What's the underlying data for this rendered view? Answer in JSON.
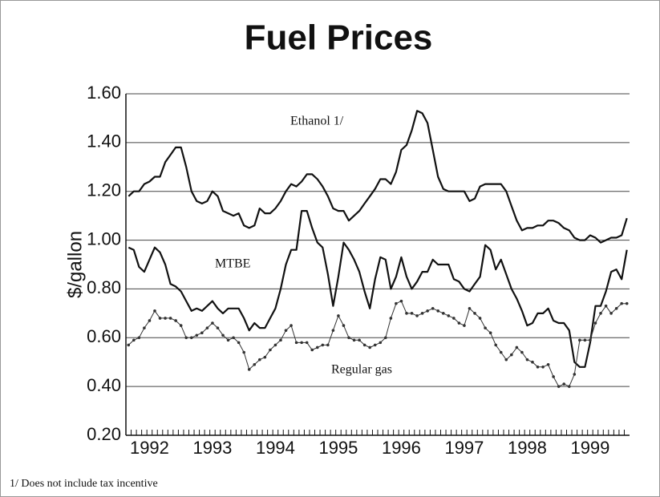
{
  "chart_data": {
    "type": "line",
    "title": "Fuel Prices",
    "y_label": "$/gallon",
    "footnote": "1/ Does not include tax incentive",
    "categories": [
      null,
      null,
      null,
      null,
      "1992",
      null,
      null,
      null,
      null,
      null,
      null,
      null,
      null,
      null,
      null,
      null,
      "1993",
      null,
      null,
      null,
      null,
      null,
      null,
      null,
      null,
      null,
      null,
      null,
      "1994",
      null,
      null,
      null,
      null,
      null,
      null,
      null,
      null,
      null,
      null,
      null,
      "1995",
      null,
      null,
      null,
      null,
      null,
      null,
      null,
      null,
      null,
      null,
      null,
      "1996",
      null,
      null,
      null,
      null,
      null,
      null,
      null,
      null,
      null,
      null,
      null,
      "1997",
      null,
      null,
      null,
      null,
      null,
      null,
      null,
      null,
      null,
      null,
      null,
      "1998",
      null,
      null,
      null,
      null,
      null,
      null,
      null,
      null,
      null,
      null,
      null,
      "1999",
      null,
      null,
      null,
      null,
      null,
      null,
      null
    ],
    "ylim": [
      0.2,
      1.6
    ],
    "yticks": [
      {
        "value": 0.2,
        "label": "0.20"
      },
      {
        "value": 0.4,
        "label": "0.40"
      },
      {
        "value": 0.6,
        "label": "0.60"
      },
      {
        "value": 0.8,
        "label": "0.80"
      },
      {
        "value": 1.0,
        "label": "1.00"
      },
      {
        "value": 1.2,
        "label": "1.20"
      },
      {
        "value": 1.4,
        "label": "1.40"
      },
      {
        "value": 1.6,
        "label": "1.60"
      }
    ],
    "grid": true,
    "series": [
      {
        "name": "Ethanol 1/",
        "color": "#111111",
        "markers": false,
        "values": [
          1.18,
          1.2,
          1.2,
          1.23,
          1.24,
          1.26,
          1.26,
          1.32,
          1.35,
          1.38,
          1.38,
          1.3,
          1.2,
          1.16,
          1.15,
          1.16,
          1.2,
          1.18,
          1.12,
          1.11,
          1.1,
          1.11,
          1.06,
          1.05,
          1.06,
          1.13,
          1.11,
          1.11,
          1.13,
          1.16,
          1.2,
          1.23,
          1.22,
          1.24,
          1.27,
          1.27,
          1.25,
          1.22,
          1.18,
          1.13,
          1.12,
          1.12,
          1.08,
          1.1,
          1.12,
          1.15,
          1.18,
          1.21,
          1.25,
          1.25,
          1.23,
          1.28,
          1.37,
          1.39,
          1.45,
          1.53,
          1.52,
          1.48,
          1.37,
          1.26,
          1.21,
          1.2,
          1.2,
          1.2,
          1.2,
          1.16,
          1.17,
          1.22,
          1.23,
          1.23,
          1.23,
          1.23,
          1.2,
          1.14,
          1.08,
          1.04,
          1.05,
          1.05,
          1.06,
          1.06,
          1.08,
          1.08,
          1.07,
          1.05,
          1.04,
          1.01,
          1.0,
          1.0,
          1.02,
          1.01,
          0.99,
          1.0,
          1.01,
          1.01,
          1.02,
          1.09
        ]
      },
      {
        "name": "MTBE",
        "color": "#111111",
        "markers": false,
        "values": [
          0.97,
          0.96,
          0.89,
          0.87,
          0.92,
          0.97,
          0.95,
          0.9,
          0.82,
          0.81,
          0.79,
          0.75,
          0.71,
          0.72,
          0.71,
          0.73,
          0.75,
          0.72,
          0.7,
          0.72,
          0.72,
          0.72,
          0.68,
          0.63,
          0.66,
          0.64,
          0.64,
          0.68,
          0.72,
          0.8,
          0.9,
          0.96,
          0.96,
          1.12,
          1.12,
          1.05,
          0.99,
          0.97,
          0.86,
          0.73,
          0.85,
          0.99,
          0.96,
          0.92,
          0.87,
          0.79,
          0.72,
          0.84,
          0.93,
          0.92,
          0.8,
          0.85,
          0.93,
          0.85,
          0.8,
          0.83,
          0.87,
          0.87,
          0.92,
          0.9,
          0.9,
          0.9,
          0.84,
          0.83,
          0.8,
          0.79,
          0.82,
          0.85,
          0.98,
          0.96,
          0.88,
          0.92,
          0.86,
          0.8,
          0.76,
          0.71,
          0.65,
          0.66,
          0.7,
          0.7,
          0.72,
          0.67,
          0.66,
          0.66,
          0.63,
          0.5,
          0.48,
          0.48,
          0.58,
          0.73,
          0.73,
          0.79,
          0.87,
          0.88,
          0.84,
          0.96
        ]
      },
      {
        "name": "Regular gas",
        "color": "#333333",
        "markers": true,
        "values": [
          0.57,
          0.59,
          0.6,
          0.64,
          0.67,
          0.71,
          0.68,
          0.68,
          0.68,
          0.67,
          0.65,
          0.6,
          0.6,
          0.61,
          0.62,
          0.64,
          0.66,
          0.64,
          0.61,
          0.59,
          0.6,
          0.58,
          0.54,
          0.47,
          0.49,
          0.51,
          0.52,
          0.55,
          0.57,
          0.59,
          0.63,
          0.65,
          0.58,
          0.58,
          0.58,
          0.55,
          0.56,
          0.57,
          0.57,
          0.63,
          0.69,
          0.65,
          0.6,
          0.59,
          0.59,
          0.57,
          0.56,
          0.57,
          0.58,
          0.6,
          0.68,
          0.74,
          0.75,
          0.7,
          0.7,
          0.69,
          0.7,
          0.71,
          0.72,
          0.71,
          0.7,
          0.69,
          0.68,
          0.66,
          0.65,
          0.72,
          0.7,
          0.68,
          0.64,
          0.62,
          0.57,
          0.54,
          0.51,
          0.53,
          0.56,
          0.54,
          0.51,
          0.5,
          0.48,
          0.48,
          0.49,
          0.44,
          0.4,
          0.41,
          0.4,
          0.45,
          0.59,
          0.59,
          0.59,
          0.66,
          0.7,
          0.73,
          0.7,
          0.72,
          0.74,
          0.74
        ]
      }
    ]
  }
}
